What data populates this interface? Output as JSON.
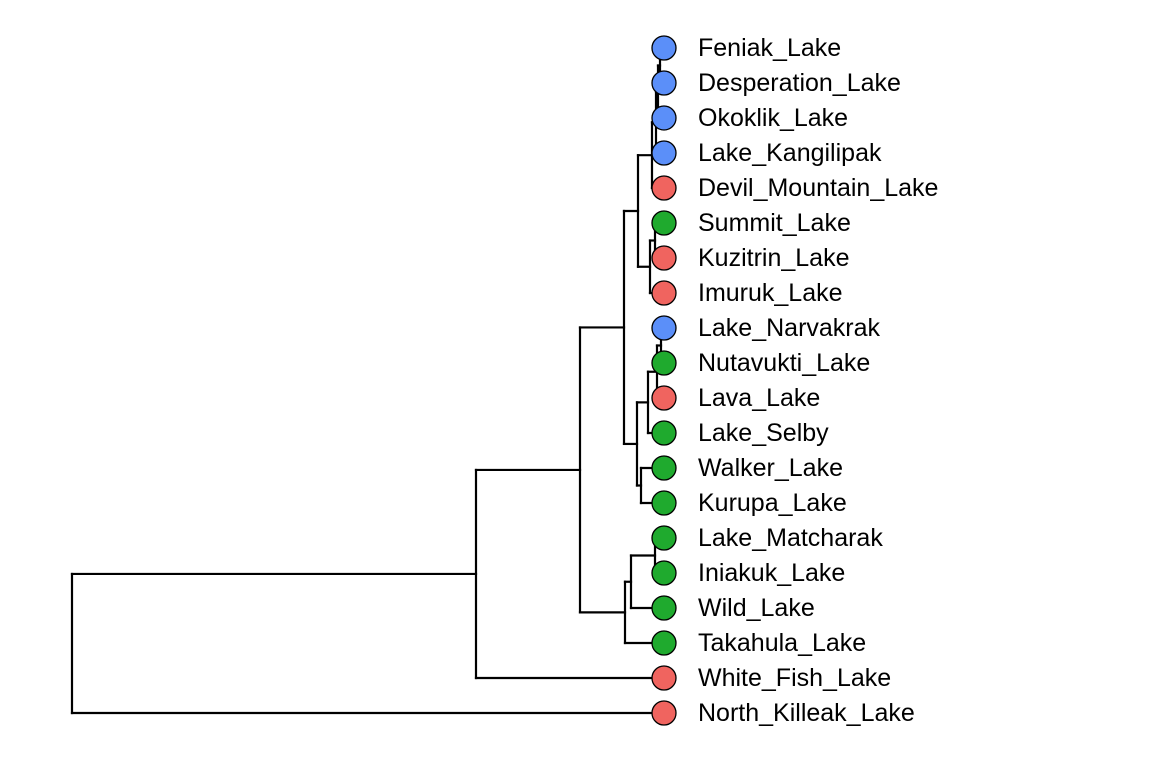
{
  "colors": {
    "blue": "#5b8ff9",
    "red": "#f0645f",
    "green": "#1faa2e"
  },
  "tree": {
    "type": "phylogenetic-tree",
    "tips": [
      {
        "id": "t1",
        "label": "Feniak_Lake",
        "color": "blue"
      },
      {
        "id": "t2",
        "label": "Desperation_Lake",
        "color": "blue"
      },
      {
        "id": "t3",
        "label": "Okoklik_Lake",
        "color": "blue"
      },
      {
        "id": "t4",
        "label": "Lake_Kangilipak",
        "color": "blue"
      },
      {
        "id": "t5",
        "label": "Devil_Mountain_Lake",
        "color": "red"
      },
      {
        "id": "t6",
        "label": "Summit_Lake",
        "color": "green"
      },
      {
        "id": "t7",
        "label": "Kuzitrin_Lake",
        "color": "red"
      },
      {
        "id": "t8",
        "label": "Imuruk_Lake",
        "color": "red"
      },
      {
        "id": "t9",
        "label": "Lake_Narvakrak",
        "color": "blue"
      },
      {
        "id": "t10",
        "label": "Nutavukti_Lake",
        "color": "green"
      },
      {
        "id": "t11",
        "label": "Lava_Lake",
        "color": "red"
      },
      {
        "id": "t12",
        "label": "Lake_Selby",
        "color": "green"
      },
      {
        "id": "t13",
        "label": "Walker_Lake",
        "color": "green"
      },
      {
        "id": "t14",
        "label": "Kurupa_Lake",
        "color": "green"
      },
      {
        "id": "t15",
        "label": "Lake_Matcharak",
        "color": "green"
      },
      {
        "id": "t16",
        "label": "Iniakuk_Lake",
        "color": "green"
      },
      {
        "id": "t17",
        "label": "Wild_Lake",
        "color": "green"
      },
      {
        "id": "t18",
        "label": "Takahula_Lake",
        "color": "green"
      },
      {
        "id": "t19",
        "label": "White_Fish_Lake",
        "color": "red"
      },
      {
        "id": "t20",
        "label": "North_Killeak_Lake",
        "color": "red"
      }
    ],
    "newick": "(((((((((t1,t2),t3),t4),t5),((t6,t7),t8)),((((t9,t10),t11),t12),(t13,t14))),(((t15,t16),t17),t18)),t19),t20);"
  }
}
